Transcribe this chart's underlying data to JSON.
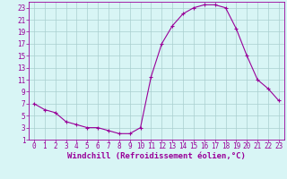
{
  "hours": [
    0,
    1,
    2,
    3,
    4,
    5,
    6,
    7,
    8,
    9,
    10,
    11,
    12,
    13,
    14,
    15,
    16,
    17,
    18,
    19,
    20,
    21,
    22,
    23
  ],
  "values": [
    7,
    6,
    5.5,
    4,
    3.5,
    3,
    3,
    2.5,
    2,
    2,
    3,
    11.5,
    17,
    20,
    22,
    23,
    23.5,
    23.5,
    23,
    19.5,
    15,
    11,
    9.5,
    7.5
  ],
  "line_color": "#990099",
  "marker": "+",
  "bg_color": "#d8f5f5",
  "grid_color": "#aacfcf",
  "xlabel": "Windchill (Refroidissement éolien,°C)",
  "xlim_left": -0.5,
  "xlim_right": 23.5,
  "ylim_bottom": 1,
  "ylim_top": 24,
  "xticks": [
    0,
    1,
    2,
    3,
    4,
    5,
    6,
    7,
    8,
    9,
    10,
    11,
    12,
    13,
    14,
    15,
    16,
    17,
    18,
    19,
    20,
    21,
    22,
    23
  ],
  "yticks": [
    1,
    3,
    5,
    7,
    9,
    11,
    13,
    15,
    17,
    19,
    21,
    23
  ],
  "tick_color": "#990099",
  "xlabel_color": "#990099",
  "xlabel_fontsize": 6.5,
  "tick_fontsize": 5.5,
  "spine_color": "#990099",
  "line_width": 0.8,
  "marker_size": 3.0
}
